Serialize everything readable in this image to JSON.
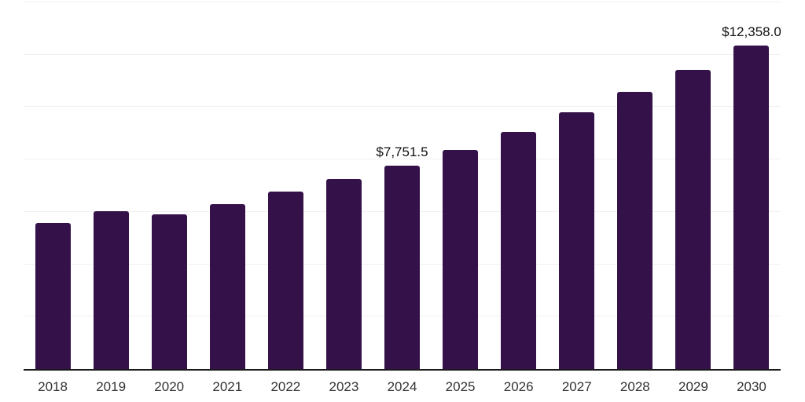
{
  "chart_data": {
    "type": "bar",
    "title": "",
    "xlabel": "",
    "ylabel": "",
    "categories": [
      "2018",
      "2019",
      "2020",
      "2021",
      "2022",
      "2023",
      "2024",
      "2025",
      "2026",
      "2027",
      "2028",
      "2029",
      "2030"
    ],
    "values": [
      5580,
      6030,
      5910,
      6300,
      6780,
      7260,
      7751.5,
      8380,
      9060,
      9790,
      10580,
      11435,
      12358
    ],
    "data_labels": {
      "2024": "$7,751.5",
      "2030": "$12,358.0"
    },
    "ylim": [
      0,
      14000
    ],
    "grid_interval": 2000,
    "grid": true,
    "y_axis_tick_labels_visible": false,
    "legend_position": "none"
  },
  "colors": {
    "bar": "#341149",
    "gridline": "#f0f0f0",
    "axis": "#1a1a1a",
    "value_label": "#111111",
    "year_label": "#333333",
    "background": "#ffffff"
  }
}
